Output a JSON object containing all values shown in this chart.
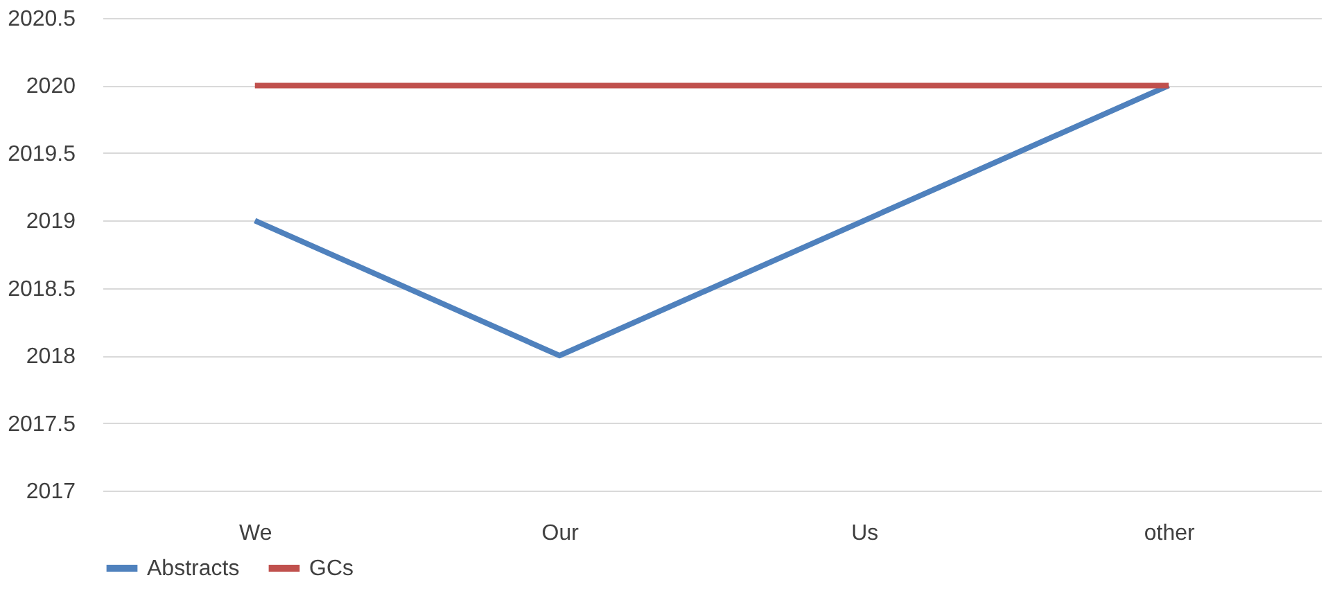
{
  "chart_data": {
    "type": "line",
    "categories": [
      "We",
      "Our",
      "Us",
      "other"
    ],
    "series": [
      {
        "name": "Abstracts",
        "color": "#4f81bd",
        "values": [
          2019,
          2018,
          2019,
          2020
        ]
      },
      {
        "name": "GCs",
        "color": "#c0504d",
        "values": [
          2020,
          2020,
          2020,
          2020
        ]
      }
    ],
    "ylim": [
      2017,
      2020.5
    ],
    "yticks": [
      2017,
      2017.5,
      2018,
      2018.5,
      2019,
      2019.5,
      2020,
      2020.5
    ],
    "grid": "y",
    "legend": "bottom",
    "marker": "none",
    "line_style": "solid"
  }
}
